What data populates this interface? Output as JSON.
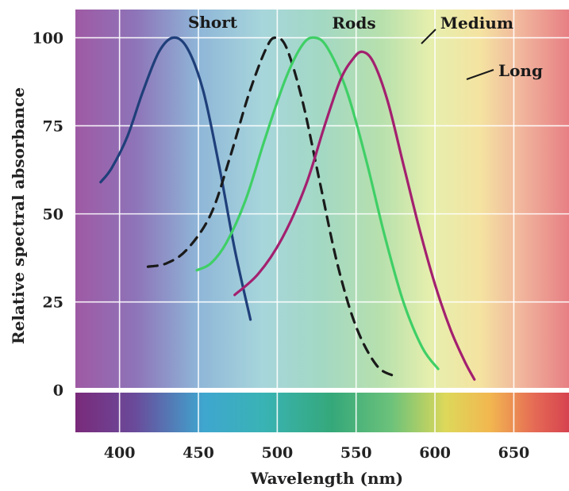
{
  "chart_data": {
    "type": "line",
    "title": "",
    "xlabel": "Wavelength (nm)",
    "ylabel": "Relative spectral absorbance",
    "xlim": [
      372,
      685
    ],
    "ylim": [
      -12,
      108
    ],
    "x_ticks": [
      {
        "value": 400,
        "label": "400"
      },
      {
        "value": 450,
        "label": "450"
      },
      {
        "value": 500,
        "label": "500"
      },
      {
        "value": 550,
        "label": "550"
      },
      {
        "value": 600,
        "label": "600"
      },
      {
        "value": 650,
        "label": "650"
      }
    ],
    "y_ticks": [
      {
        "value": 0,
        "label": "0"
      },
      {
        "value": 25,
        "label": "25"
      },
      {
        "value": 50,
        "label": "50"
      },
      {
        "value": 75,
        "label": "75"
      },
      {
        "value": 100,
        "label": "100"
      }
    ],
    "grid": true,
    "background": "visible light spectrum gradient (violet to red)",
    "series": [
      {
        "name": "Short",
        "color": "#1f3f7a",
        "style": "solid",
        "points": [
          [
            388,
            59
          ],
          [
            395,
            63
          ],
          [
            405,
            72
          ],
          [
            415,
            85
          ],
          [
            425,
            96
          ],
          [
            434,
            100
          ],
          [
            443,
            97
          ],
          [
            453,
            85
          ],
          [
            463,
            64
          ],
          [
            473,
            40
          ],
          [
            483,
            20
          ]
        ]
      },
      {
        "name": "Rods",
        "color": "#1a1a1a",
        "style": "dashed",
        "points": [
          [
            418,
            35
          ],
          [
            430,
            36
          ],
          [
            443,
            40
          ],
          [
            458,
            50
          ],
          [
            470,
            66
          ],
          [
            482,
            84
          ],
          [
            493,
            97
          ],
          [
            499,
            100
          ],
          [
            506,
            97
          ],
          [
            516,
            82
          ],
          [
            527,
            59
          ],
          [
            538,
            36
          ],
          [
            550,
            18
          ],
          [
            563,
            7
          ],
          [
            574,
            4
          ]
        ]
      },
      {
        "name": "Medium",
        "color": "#3fcf66",
        "style": "solid",
        "points": [
          [
            449,
            34
          ],
          [
            458,
            36
          ],
          [
            468,
            42
          ],
          [
            480,
            54
          ],
          [
            492,
            71
          ],
          [
            505,
            88
          ],
          [
            516,
            98
          ],
          [
            524,
            100
          ],
          [
            532,
            97
          ],
          [
            544,
            85
          ],
          [
            556,
            66
          ],
          [
            568,
            44
          ],
          [
            580,
            25
          ],
          [
            592,
            12
          ],
          [
            602,
            6
          ]
        ]
      },
      {
        "name": "Long",
        "color": "#a3206f",
        "style": "solid",
        "points": [
          [
            473,
            27
          ],
          [
            488,
            33
          ],
          [
            503,
            43
          ],
          [
            518,
            58
          ],
          [
            530,
            75
          ],
          [
            540,
            88
          ],
          [
            548,
            94
          ],
          [
            554,
            96
          ],
          [
            561,
            93
          ],
          [
            570,
            82
          ],
          [
            580,
            64
          ],
          [
            590,
            46
          ],
          [
            600,
            30
          ],
          [
            610,
            17
          ],
          [
            619,
            8
          ],
          [
            625,
            3
          ]
        ]
      }
    ],
    "series_labels": [
      {
        "name": "Short",
        "text": "Short"
      },
      {
        "name": "Rods",
        "text": "Rods"
      },
      {
        "name": "Medium",
        "text": "Medium"
      },
      {
        "name": "Long",
        "text": "Long"
      }
    ],
    "spectrum_colors": [
      "#7a2a7a",
      "#8a4fa0",
      "#5a73b5",
      "#57b3cf",
      "#5ec2b2",
      "#4bb882",
      "#7ccd6b",
      "#d8dd6a",
      "#f0b864",
      "#e66a62"
    ]
  }
}
